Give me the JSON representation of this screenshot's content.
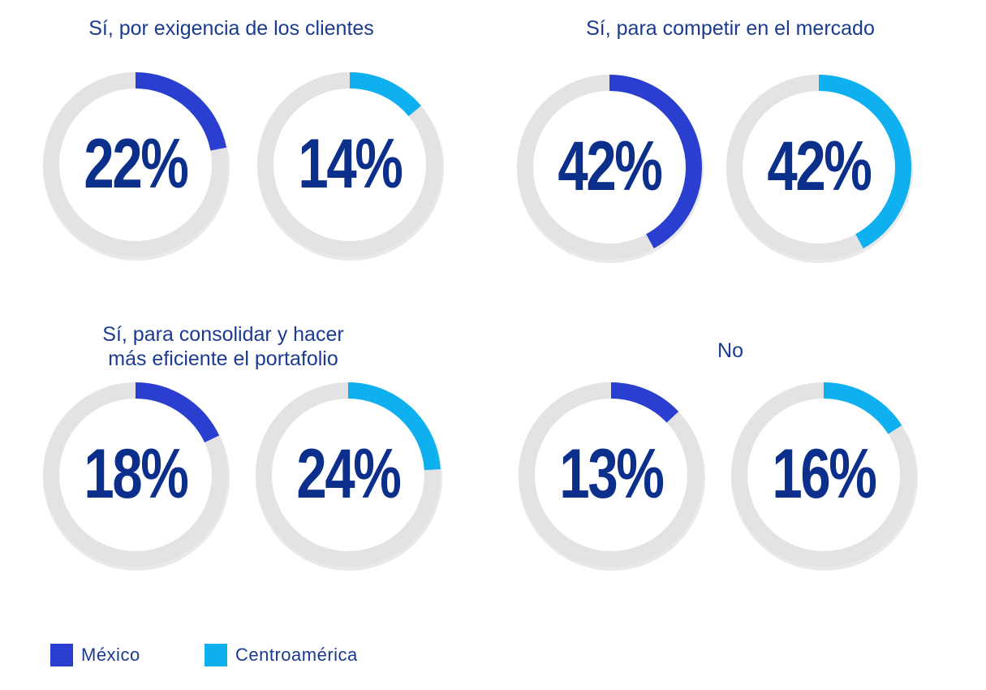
{
  "colors": {
    "mexico": "#2a3fcf",
    "centroamerica": "#0fb0ef",
    "track": "#e3e3e6",
    "value_text": "#0d2f8c"
  },
  "chart_data": [
    {
      "type": "donut",
      "title": "Sí, por exigencia de los clientes",
      "series": [
        {
          "name": "México",
          "value": 22,
          "label": "22%"
        },
        {
          "name": "Centroamérica",
          "value": 14,
          "label": "14%"
        }
      ]
    },
    {
      "type": "donut",
      "title": "Sí, para competir en el mercado",
      "series": [
        {
          "name": "México",
          "value": 42,
          "label": "42%"
        },
        {
          "name": "Centroamérica",
          "value": 42,
          "label": "42%"
        }
      ]
    },
    {
      "type": "donut",
      "title": "Sí, para consolidar y hacer\nmás eficiente el portafolio",
      "series": [
        {
          "name": "México",
          "value": 18,
          "label": "18%"
        },
        {
          "name": "Centroamérica",
          "value": 24,
          "label": "24%"
        }
      ]
    },
    {
      "type": "donut",
      "title": "No",
      "series": [
        {
          "name": "México",
          "value": 13,
          "label": "13%"
        },
        {
          "name": "Centroamérica",
          "value": 16,
          "label": "16%"
        }
      ]
    }
  ],
  "legend": {
    "items": [
      {
        "label": "México",
        "color": "#2a3fcf"
      },
      {
        "label": "Centroamérica",
        "color": "#0fb0ef"
      }
    ]
  }
}
